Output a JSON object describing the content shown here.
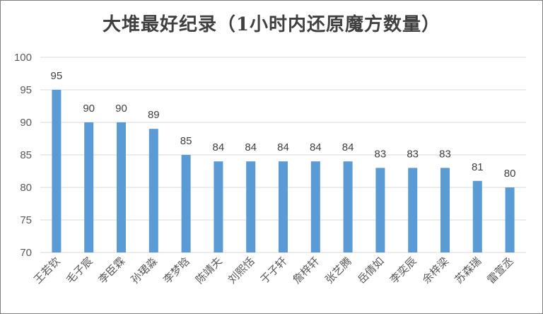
{
  "chart_data": {
    "type": "bar",
    "title": "大堆最好纪录（1小时内还原魔方数量）",
    "categories": [
      "王若钦",
      "毛子宸",
      "李臣霖",
      "孙珺淼",
      "李梦晗",
      "陈靖夫",
      "刘熙恬",
      "于子轩",
      "詹梓轩",
      "张艺腾",
      "岳倩如",
      "李奕辰",
      "余梓梁",
      "苏森瑞",
      "雷萱丞"
    ],
    "values": [
      95,
      90,
      90,
      89,
      85,
      84,
      84,
      84,
      84,
      84,
      83,
      83,
      83,
      81,
      80
    ],
    "ylim": [
      70,
      100
    ],
    "yticks": [
      70,
      75,
      80,
      85,
      90,
      95,
      100
    ],
    "xlabel": "",
    "ylabel": "",
    "grid": true,
    "bar_color": "#5b9bd5"
  }
}
